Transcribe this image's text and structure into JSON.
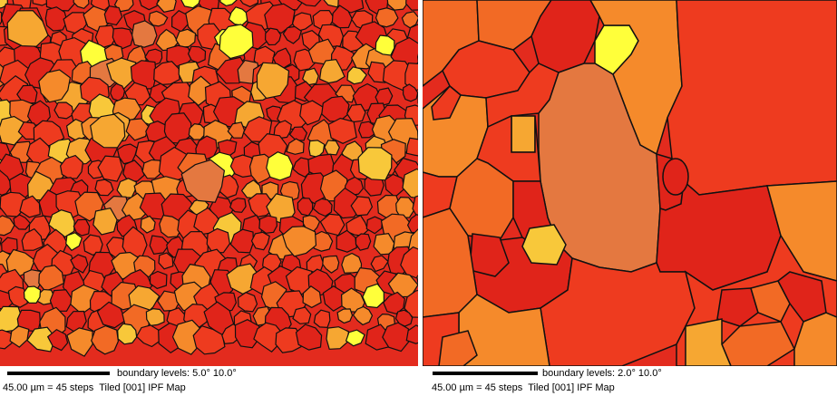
{
  "colors": {
    "background_red": "#e32b1e",
    "boundary": "#111111",
    "grain_palette": [
      "#e0241a",
      "#ee3b1f",
      "#f26a25",
      "#f58a2b",
      "#f6a732",
      "#f8c83a",
      "#ffff3a",
      "#e47840"
    ]
  },
  "maps": [
    {
      "label": "left-ipf-map",
      "boundary_levels": "boundary levels: 5.0° 10.0°",
      "scale_text": "45.00 µm = 45 steps",
      "map_title": "Tiled [001] IPF Map"
    },
    {
      "label": "right-ipf-map",
      "boundary_levels": "boundary levels: 2.0° 10.0°",
      "scale_text": "45.00 µm = 45 steps",
      "map_title": "Tiled [001] IPF Map"
    }
  ]
}
